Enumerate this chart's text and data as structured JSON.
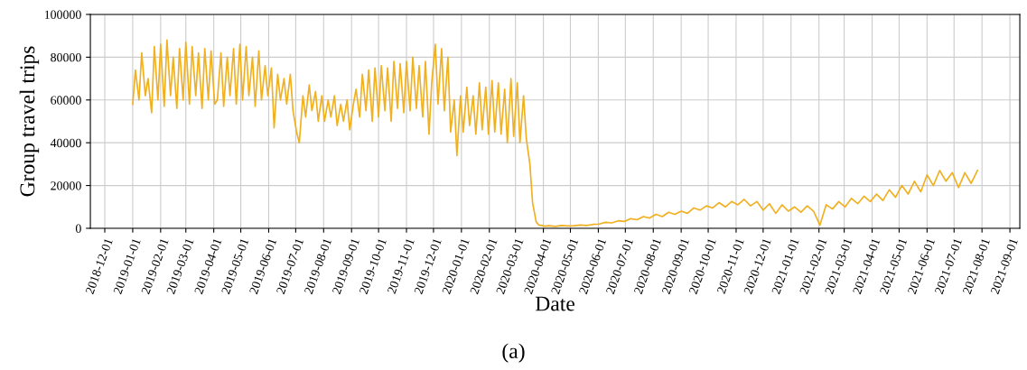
{
  "chart_data": {
    "type": "line",
    "xlabel": "Date",
    "ylabel": "Group travel trips",
    "annotations": [
      "(a)"
    ],
    "xlim": [
      "2018-11-15",
      "2021-09-12"
    ],
    "ylim": [
      0,
      100000
    ],
    "yticks": [
      0,
      20000,
      40000,
      60000,
      80000,
      100000
    ],
    "xticks": [
      "2018-12-01",
      "2019-01-01",
      "2019-02-01",
      "2019-03-01",
      "2019-04-01",
      "2019-05-01",
      "2019-06-01",
      "2019-07-01",
      "2019-08-01",
      "2019-09-01",
      "2019-10-01",
      "2019-11-01",
      "2019-12-01",
      "2020-01-01",
      "2020-02-01",
      "2020-03-01",
      "2020-04-01",
      "2020-05-01",
      "2020-06-01",
      "2020-07-01",
      "2020-08-01",
      "2020-09-01",
      "2020-10-01",
      "2020-11-01",
      "2020-12-01",
      "2021-01-01",
      "2021-02-01",
      "2021-03-01",
      "2021-04-01",
      "2021-05-01",
      "2021-06-01",
      "2021-07-01",
      "2021-08-01",
      "2021-09-01"
    ],
    "grid": true,
    "marker": "none",
    "line_style": "solid",
    "series": [
      {
        "color": "#f0b020",
        "x": [
          "2019-01-01",
          "2019-01-04",
          "2019-01-08",
          "2019-01-11",
          "2019-01-15",
          "2019-01-18",
          "2019-01-22",
          "2019-01-25",
          "2019-01-29",
          "2019-02-01",
          "2019-02-05",
          "2019-02-08",
          "2019-02-12",
          "2019-02-15",
          "2019-02-19",
          "2019-02-22",
          "2019-02-26",
          "2019-03-01",
          "2019-03-05",
          "2019-03-08",
          "2019-03-12",
          "2019-03-15",
          "2019-03-19",
          "2019-03-22",
          "2019-03-26",
          "2019-03-29",
          "2019-04-02",
          "2019-04-05",
          "2019-04-09",
          "2019-04-12",
          "2019-04-16",
          "2019-04-19",
          "2019-04-23",
          "2019-04-26",
          "2019-04-30",
          "2019-05-03",
          "2019-05-07",
          "2019-05-10",
          "2019-05-14",
          "2019-05-17",
          "2019-05-21",
          "2019-05-24",
          "2019-05-28",
          "2019-05-31",
          "2019-06-04",
          "2019-06-07",
          "2019-06-11",
          "2019-06-14",
          "2019-06-18",
          "2019-06-21",
          "2019-06-25",
          "2019-06-28",
          "2019-07-02",
          "2019-07-05",
          "2019-07-09",
          "2019-07-12",
          "2019-07-16",
          "2019-07-19",
          "2019-07-23",
          "2019-07-26",
          "2019-07-30",
          "2019-08-02",
          "2019-08-06",
          "2019-08-09",
          "2019-08-13",
          "2019-08-16",
          "2019-08-20",
          "2019-08-23",
          "2019-08-27",
          "2019-08-30",
          "2019-09-03",
          "2019-09-06",
          "2019-09-10",
          "2019-09-13",
          "2019-09-17",
          "2019-09-20",
          "2019-09-24",
          "2019-09-27",
          "2019-10-01",
          "2019-10-04",
          "2019-10-08",
          "2019-10-11",
          "2019-10-15",
          "2019-10-18",
          "2019-10-22",
          "2019-10-25",
          "2019-10-29",
          "2019-11-01",
          "2019-11-05",
          "2019-11-08",
          "2019-11-12",
          "2019-11-15",
          "2019-11-19",
          "2019-11-22",
          "2019-11-26",
          "2019-11-29",
          "2019-12-03",
          "2019-12-06",
          "2019-12-10",
          "2019-12-13",
          "2019-12-17",
          "2019-12-20",
          "2019-12-24",
          "2019-12-27",
          "2019-12-31",
          "2020-01-03",
          "2020-01-07",
          "2020-01-10",
          "2020-01-14",
          "2020-01-17",
          "2020-01-21",
          "2020-01-24",
          "2020-01-28",
          "2020-01-31",
          "2020-02-04",
          "2020-02-07",
          "2020-02-11",
          "2020-02-14",
          "2020-02-18",
          "2020-02-21",
          "2020-02-25",
          "2020-02-28",
          "2020-03-03",
          "2020-03-06",
          "2020-03-10",
          "2020-03-13",
          "2020-03-17",
          "2020-03-20",
          "2020-03-24",
          "2020-03-27",
          "2020-03-31",
          "2020-04-03",
          "2020-04-07",
          "2020-04-14",
          "2020-04-21",
          "2020-04-28",
          "2020-05-05",
          "2020-05-12",
          "2020-05-19",
          "2020-05-26",
          "2020-06-02",
          "2020-06-09",
          "2020-06-16",
          "2020-06-23",
          "2020-06-30",
          "2020-07-07",
          "2020-07-14",
          "2020-07-21",
          "2020-07-28",
          "2020-08-04",
          "2020-08-11",
          "2020-08-18",
          "2020-08-25",
          "2020-09-01",
          "2020-09-08",
          "2020-09-15",
          "2020-09-22",
          "2020-09-29",
          "2020-10-06",
          "2020-10-13",
          "2020-10-20",
          "2020-10-27",
          "2020-11-03",
          "2020-11-10",
          "2020-11-17",
          "2020-11-24",
          "2020-12-01",
          "2020-12-08",
          "2020-12-15",
          "2020-12-22",
          "2020-12-29",
          "2021-01-05",
          "2021-01-12",
          "2021-01-19",
          "2021-01-26",
          "2021-02-02",
          "2021-02-09",
          "2021-02-16",
          "2021-02-23",
          "2021-03-02",
          "2021-03-09",
          "2021-03-16",
          "2021-03-23",
          "2021-03-30",
          "2021-04-06",
          "2021-04-13",
          "2021-04-20",
          "2021-04-27",
          "2021-05-04",
          "2021-05-11",
          "2021-05-18",
          "2021-05-25",
          "2021-06-01",
          "2021-06-08",
          "2021-06-15",
          "2021-06-22",
          "2021-06-29",
          "2021-07-06",
          "2021-07-13",
          "2021-07-20",
          "2021-07-27"
        ],
        "values": [
          58000,
          74000,
          60000,
          82000,
          62000,
          70000,
          54000,
          85000,
          60000,
          86000,
          57000,
          88000,
          62000,
          80000,
          56000,
          84000,
          60000,
          87000,
          58000,
          85000,
          62000,
          82000,
          56000,
          84000,
          60000,
          83000,
          58000,
          60000,
          82000,
          57000,
          80000,
          62000,
          84000,
          58000,
          86000,
          60000,
          85000,
          62000,
          80000,
          57000,
          83000,
          60000,
          76000,
          62000,
          75000,
          47000,
          72000,
          60000,
          70000,
          58000,
          72000,
          55000,
          45000,
          40000,
          62000,
          52000,
          67000,
          55000,
          64000,
          50000,
          62000,
          50000,
          60000,
          52000,
          62000,
          48000,
          58000,
          50000,
          60000,
          46000,
          58000,
          65000,
          52000,
          72000,
          55000,
          74000,
          50000,
          75000,
          52000,
          76000,
          55000,
          75000,
          50000,
          78000,
          56000,
          77000,
          54000,
          78000,
          55000,
          80000,
          56000,
          76000,
          52000,
          78000,
          44000,
          68000,
          86000,
          58000,
          84000,
          55000,
          80000,
          45000,
          60000,
          34000,
          62000,
          45000,
          66000,
          48000,
          62000,
          44000,
          68000,
          46000,
          66000,
          44000,
          69000,
          45000,
          68000,
          44000,
          65000,
          40000,
          70000,
          43000,
          68000,
          40000,
          62000,
          42000,
          30000,
          12000,
          3000,
          1500,
          1200,
          1000,
          1200,
          900,
          1300,
          1100,
          1200,
          1500,
          1300,
          1800,
          2000,
          2800,
          2500,
          3500,
          3200,
          4500,
          4000,
          5500,
          4800,
          6500,
          5500,
          7500,
          6500,
          8000,
          7000,
          9500,
          8500,
          10500,
          9500,
          12000,
          10000,
          12500,
          11000,
          13500,
          10500,
          12500,
          8500,
          11500,
          7000,
          11000,
          8000,
          10000,
          7500,
          10500,
          8000,
          1500,
          11000,
          9000,
          12500,
          10000,
          14000,
          11500,
          15000,
          12500,
          16000,
          13000,
          18000,
          14500,
          20000,
          16000,
          22000,
          17000,
          25000,
          20000,
          27000,
          22000,
          26000,
          19000,
          26000,
          21000,
          27000
        ]
      }
    ]
  }
}
